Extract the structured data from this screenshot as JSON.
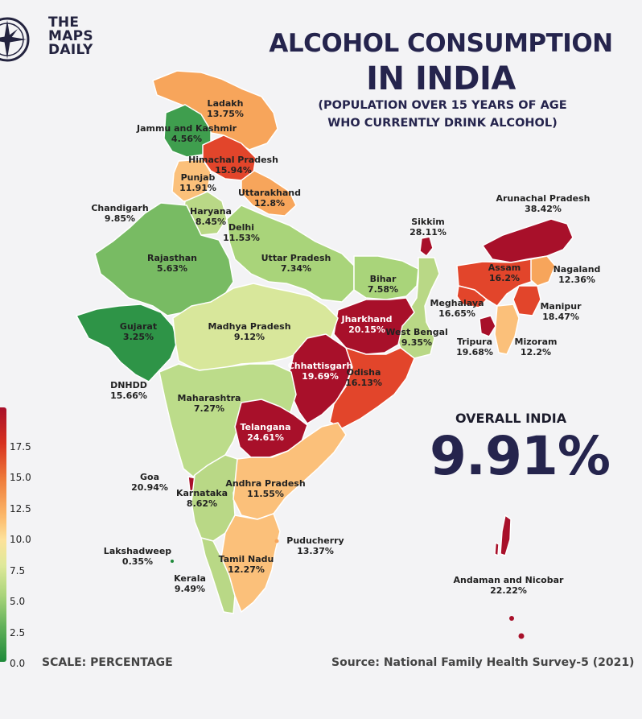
{
  "logo": {
    "line1": "THE",
    "line2": "MAPS",
    "line3": "DAILY"
  },
  "title": {
    "line1": "ALCOHOL CONSUMPTION",
    "line2": "IN INDIA"
  },
  "subtitle": {
    "line1": "(POPULATION OVER 15 YEARS OF AGE",
    "line2": "WHO CURRENTLY DRINK ALCOHOL)"
  },
  "overall": {
    "label": "OVERALL INDIA",
    "value": "9.91%"
  },
  "legend": {
    "ticks": [
      "17.5",
      "15.0",
      "12.5",
      "10.0",
      "7.5",
      "5.0",
      "2.5",
      "0.0"
    ]
  },
  "scale_label": "SCALE: PERCENTAGE",
  "source": "Source: National Family Health Survey-5 (2021)",
  "colors": {
    "title": "#25244d",
    "high": "#a8102a",
    "mid": "#fbb567",
    "low": "#1e8a3a"
  },
  "regions": [
    {
      "name": "Ladakh",
      "value": "13.75%"
    },
    {
      "name": "Jammu and Kashmir",
      "value": "4.56%"
    },
    {
      "name": "Himachal Pradesh",
      "value": "15.94%"
    },
    {
      "name": "Punjab",
      "value": "11.91%"
    },
    {
      "name": "Uttarakhand",
      "value": "12.8%"
    },
    {
      "name": "Chandigarh",
      "value": "9.85%"
    },
    {
      "name": "Haryana",
      "value": "8.45%"
    },
    {
      "name": "Delhi",
      "value": "11.53%"
    },
    {
      "name": "Rajasthan",
      "value": "5.63%"
    },
    {
      "name": "Uttar Pradesh",
      "value": "7.34%"
    },
    {
      "name": "Bihar",
      "value": "7.58%"
    },
    {
      "name": "Sikkim",
      "value": "28.11%"
    },
    {
      "name": "Arunachal Pradesh",
      "value": "38.42%"
    },
    {
      "name": "Assam",
      "value": "16.2%"
    },
    {
      "name": "Nagaland",
      "value": "12.36%"
    },
    {
      "name": "Meghalaya",
      "value": "16.65%"
    },
    {
      "name": "Manipur",
      "value": "18.47%"
    },
    {
      "name": "Tripura",
      "value": "19.68%"
    },
    {
      "name": "Mizoram",
      "value": "12.2%"
    },
    {
      "name": "Gujarat",
      "value": "3.25%"
    },
    {
      "name": "Madhya Pradesh",
      "value": "9.12%"
    },
    {
      "name": "Jharkhand",
      "value": "20.15%"
    },
    {
      "name": "West Bengal",
      "value": "9.35%"
    },
    {
      "name": "DNHDD",
      "value": "15.66%"
    },
    {
      "name": "Chhattisgarh",
      "value": "19.69%"
    },
    {
      "name": "Odisha",
      "value": "16.13%"
    },
    {
      "name": "Maharashtra",
      "value": "7.27%"
    },
    {
      "name": "Telangana",
      "value": "24.61%"
    },
    {
      "name": "Goa",
      "value": "20.94%"
    },
    {
      "name": "Andhra Pradesh",
      "value": "11.55%"
    },
    {
      "name": "Karnataka",
      "value": "8.62%"
    },
    {
      "name": "Puducherry",
      "value": "13.37%"
    },
    {
      "name": "Lakshadweep",
      "value": "0.35%"
    },
    {
      "name": "Tamil Nadu",
      "value": "12.27%"
    },
    {
      "name": "Kerala",
      "value": "9.49%"
    },
    {
      "name": "Andaman and Nicobar",
      "value": "22.22%"
    }
  ]
}
